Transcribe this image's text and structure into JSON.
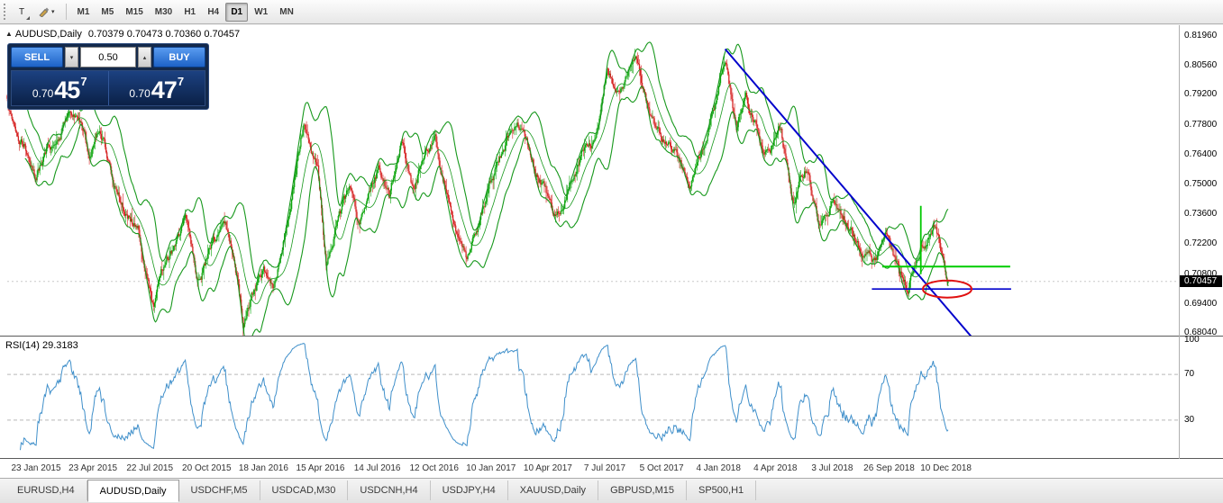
{
  "icons": {
    "chart_marker": "▲",
    "text_tool": "T",
    "caret_down": "▾",
    "spinner_up": "▴",
    "spinner_down": "▾"
  },
  "toolbar": {
    "timeframes": [
      "M1",
      "M5",
      "M15",
      "M30",
      "H1",
      "H4",
      "D1",
      "W1",
      "MN"
    ],
    "active_timeframe": "D1"
  },
  "chart": {
    "title": "AUDUSD,Daily",
    "ohlc": "0.70379 0.70473 0.70360 0.70457",
    "price_badge": "0.70457",
    "price_scale": [
      "0.81960",
      "0.80560",
      "0.79200",
      "0.77800",
      "0.76400",
      "0.75000",
      "0.73600",
      "0.72200",
      "0.70800",
      "0.69400",
      "0.68040"
    ],
    "date_axis": [
      "23 Jan 2015",
      "23 Apr 2015",
      "22 Jul 2015",
      "20 Oct 2015",
      "18 Jan 2016",
      "15 Apr 2016",
      "14 Jul 2016",
      "12 Oct 2016",
      "10 Jan 2017",
      "10 Apr 2017",
      "7 Jul 2017",
      "5 Oct 2017",
      "4 Jan 2018",
      "4 Apr 2018",
      "3 Jul 2018",
      "26 Sep 2018",
      "10 Dec 2018"
    ]
  },
  "trade_panel": {
    "sell_label": "SELL",
    "buy_label": "BUY",
    "volume": "0.50",
    "sell_price": {
      "prefix": "0.70",
      "main": "45",
      "sup": "7"
    },
    "buy_price": {
      "prefix": "0.70",
      "main": "47",
      "sup": "7"
    }
  },
  "rsi": {
    "label": "RSI(14) 29.3183",
    "value": 29.3183,
    "scale": [
      "100",
      "70",
      "30"
    ],
    "levels": [
      70,
      30
    ]
  },
  "tabs": {
    "items": [
      "EURUSD,H4",
      "AUDUSD,Daily",
      "USDCHF,M5",
      "USDCAD,M30",
      "USDCNH,H4",
      "USDJPY,H4",
      "XAUUSD,Daily",
      "GBPUSD,M15",
      "SP500,H1"
    ],
    "active": "AUDUSD,Daily"
  },
  "chart_data": {
    "type": "candlestick",
    "symbol": "AUDUSD",
    "timeframe": "Daily",
    "x_range": [
      "23 Jan 2015",
      "10 Dec 2018"
    ],
    "y_range": [
      0.6804,
      0.8196
    ],
    "num_candles": 1010,
    "seed": 12,
    "last_ohlc": {
      "open": 0.70379,
      "high": 0.70473,
      "low": 0.7036,
      "close": 0.70457
    },
    "price_path_anchors": [
      [
        0.0,
        0.791
      ],
      [
        0.012,
        0.778
      ],
      [
        0.03,
        0.76
      ],
      [
        0.048,
        0.77
      ],
      [
        0.062,
        0.781
      ],
      [
        0.075,
        0.776
      ],
      [
        0.088,
        0.763
      ],
      [
        0.098,
        0.775
      ],
      [
        0.112,
        0.753
      ],
      [
        0.125,
        0.738
      ],
      [
        0.14,
        0.728
      ],
      [
        0.15,
        0.706
      ],
      [
        0.155,
        0.693
      ],
      [
        0.168,
        0.714
      ],
      [
        0.18,
        0.722
      ],
      [
        0.19,
        0.731
      ],
      [
        0.202,
        0.702
      ],
      [
        0.215,
        0.72
      ],
      [
        0.23,
        0.731
      ],
      [
        0.242,
        0.717
      ],
      [
        0.251,
        0.686
      ],
      [
        0.262,
        0.7
      ],
      [
        0.272,
        0.712
      ],
      [
        0.283,
        0.703
      ],
      [
        0.3,
        0.742
      ],
      [
        0.316,
        0.78
      ],
      [
        0.33,
        0.758
      ],
      [
        0.339,
        0.716
      ],
      [
        0.352,
        0.733
      ],
      [
        0.365,
        0.748
      ],
      [
        0.373,
        0.731
      ],
      [
        0.385,
        0.749
      ],
      [
        0.395,
        0.758
      ],
      [
        0.406,
        0.743
      ],
      [
        0.42,
        0.771
      ],
      [
        0.432,
        0.746
      ],
      [
        0.444,
        0.766
      ],
      [
        0.455,
        0.775
      ],
      [
        0.47,
        0.74
      ],
      [
        0.488,
        0.716
      ],
      [
        0.5,
        0.733
      ],
      [
        0.515,
        0.755
      ],
      [
        0.53,
        0.77
      ],
      [
        0.548,
        0.774
      ],
      [
        0.56,
        0.756
      ],
      [
        0.572,
        0.748
      ],
      [
        0.582,
        0.734
      ],
      [
        0.595,
        0.748
      ],
      [
        0.61,
        0.764
      ],
      [
        0.625,
        0.772
      ],
      [
        0.638,
        0.805
      ],
      [
        0.65,
        0.792
      ],
      [
        0.668,
        0.81
      ],
      [
        0.68,
        0.786
      ],
      [
        0.695,
        0.773
      ],
      [
        0.71,
        0.766
      ],
      [
        0.725,
        0.752
      ],
      [
        0.74,
        0.77
      ],
      [
        0.752,
        0.786
      ],
      [
        0.763,
        0.812
      ],
      [
        0.775,
        0.778
      ],
      [
        0.785,
        0.793
      ],
      [
        0.8,
        0.772
      ],
      [
        0.812,
        0.765
      ],
      [
        0.822,
        0.774
      ],
      [
        0.836,
        0.742
      ],
      [
        0.848,
        0.757
      ],
      [
        0.862,
        0.735
      ],
      [
        0.876,
        0.744
      ],
      [
        0.89,
        0.736
      ],
      [
        0.905,
        0.72
      ],
      [
        0.92,
        0.712
      ],
      [
        0.935,
        0.728
      ],
      [
        0.947,
        0.71
      ],
      [
        0.957,
        0.7025
      ],
      [
        0.971,
        0.722
      ],
      [
        0.985,
        0.7335
      ],
      [
        0.993,
        0.718
      ],
      [
        1.0,
        0.7046
      ]
    ],
    "overlays": {
      "bollinger": {
        "period": 20,
        "deviation": 2,
        "color": "#17981c"
      },
      "rsi": {
        "period": 14,
        "value": 29.3183,
        "color": "#3f8fca",
        "levels": [
          70,
          30
        ]
      }
    },
    "annotations": {
      "trendline": {
        "color": "#0202cc",
        "x1_t": 0.763,
        "p1": 0.8135,
        "x2_t": 1.026,
        "p2": 0.678
      },
      "hline_green": {
        "color": "#00cc00",
        "p": 0.7115,
        "x1_t": 0.93,
        "x2_t": 1.066
      },
      "hline_blue": {
        "color": "#0000cc",
        "p": 0.701,
        "x1_t": 0.919,
        "x2_t": 1.067
      },
      "vline_green": {
        "color": "#00c800",
        "x_t": 0.971,
        "p1": 0.74,
        "p2": 0.708
      },
      "ellipse_red": {
        "color": "#e01010",
        "cx_t": 0.999,
        "p": 0.701,
        "rx": 27,
        "ry": 9.5
      },
      "bid_line": {
        "color": "#c8c8c8",
        "p": 0.70457
      }
    },
    "candle_colors": {
      "up": "#0ca50c",
      "down": "#d62424"
    }
  }
}
